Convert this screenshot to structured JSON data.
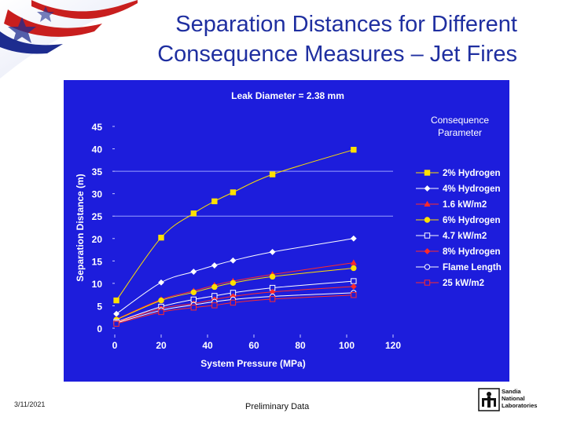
{
  "slide": {
    "title_line1": "Separation Distances for Different",
    "title_line2": "Consequence Measures – Jet Fires",
    "footer_date": "3/11/2021",
    "footer_note": "Preliminary Data",
    "logo_lines": [
      "Sandia",
      "National",
      "Laboratories"
    ]
  },
  "colors": {
    "title": "#1f2fa0",
    "plot_background": "#1d1ddc",
    "axis_text": "#ffffff",
    "gridline": "#9aa0ff"
  },
  "chart_data": {
    "type": "line",
    "title": "Leak Diameter = 2.38 mm",
    "xlabel": "System Pressure (MPa)",
    "ylabel": "Separation Distance (m)",
    "xlim": [
      0,
      120
    ],
    "ylim": [
      0,
      45
    ],
    "xticks": [
      0,
      20,
      40,
      60,
      80,
      100,
      120
    ],
    "yticks": [
      0,
      5,
      10,
      15,
      20,
      25,
      30,
      35,
      40,
      45
    ],
    "grid": "horizontal lines at 25 and 35",
    "legend_title": "Consequence Parameter",
    "legend_position": "right",
    "x": [
      0.7,
      20,
      34,
      43,
      51,
      68,
      103
    ],
    "series": [
      {
        "name": "2% Hydrogen",
        "color": "#ffe000",
        "marker": "square-filled",
        "values": [
          6.2,
          20.2,
          25.6,
          28.3,
          30.3,
          34.3,
          39.8
        ]
      },
      {
        "name": "4% Hydrogen",
        "color": "#ffffff",
        "marker": "diamond-filled",
        "values": [
          3.2,
          10.2,
          12.6,
          14.0,
          15.1,
          17.0,
          20.0
        ]
      },
      {
        "name": "1.6 kW/m2",
        "color": "#ff2a2a",
        "marker": "triangle-filled",
        "values": [
          2.0,
          6.4,
          8.3,
          9.6,
          10.5,
          12.0,
          14.6
        ]
      },
      {
        "name": "6% Hydrogen",
        "color": "#ffe000",
        "marker": "circle-filled",
        "values": [
          1.9,
          6.2,
          8.0,
          9.2,
          10.1,
          11.5,
          13.4
        ]
      },
      {
        "name": "4.7 kW/m2",
        "color": "#ffffff",
        "marker": "square-open",
        "values": [
          1.4,
          4.8,
          6.4,
          7.2,
          7.9,
          9.0,
          10.5
        ]
      },
      {
        "name": "8% Hydrogen",
        "color": "#ff2a2a",
        "marker": "diamond-filled",
        "values": [
          1.3,
          4.4,
          5.5,
          6.4,
          7.1,
          8.1,
          9.3
        ]
      },
      {
        "name": "Flame Length",
        "color": "#ffffff",
        "marker": "circle-open",
        "values": [
          1.2,
          4.0,
          5.2,
          5.9,
          6.4,
          7.1,
          7.9
        ]
      },
      {
        "name": "25 kW/m2",
        "color": "#ff2a2a",
        "marker": "square-open",
        "values": [
          1.0,
          3.6,
          4.6,
          5.1,
          5.7,
          6.5,
          7.4
        ]
      }
    ]
  }
}
